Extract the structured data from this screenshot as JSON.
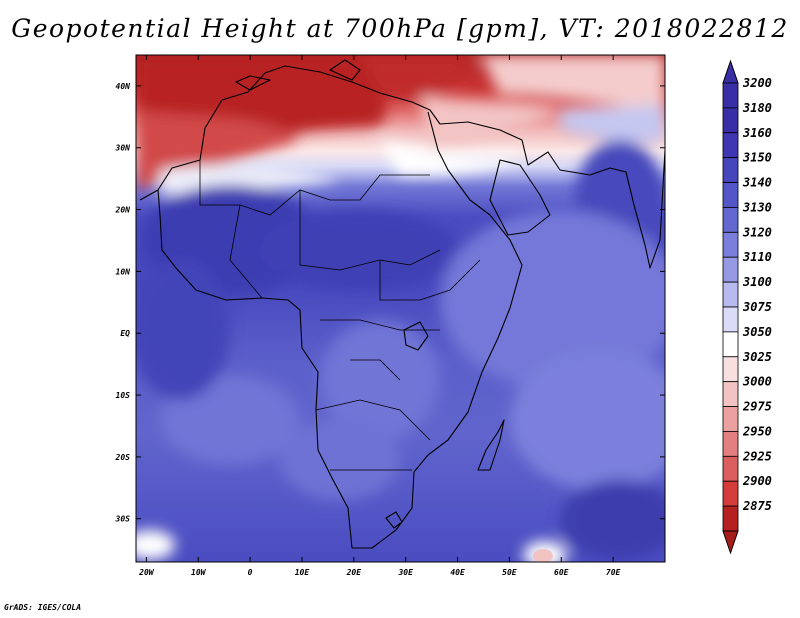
{
  "title": "Geopotential Height at 700hPa [gpm], VT: 2018022812",
  "credit": "GrADS: IGES/COLA",
  "colors": {
    "coastline": "#000000",
    "frame": "#000000"
  },
  "map": {
    "projection": "latlon",
    "lon_range": [
      -22,
      80
    ],
    "lat_range": [
      -37,
      45
    ],
    "lon_ticks": [
      {
        "lon": -20,
        "label": "20W"
      },
      {
        "lon": -10,
        "label": "10W"
      },
      {
        "lon": 0,
        "label": "0"
      },
      {
        "lon": 10,
        "label": "10E"
      },
      {
        "lon": 20,
        "label": "20E"
      },
      {
        "lon": 30,
        "label": "30E"
      },
      {
        "lon": 40,
        "label": "40E"
      },
      {
        "lon": 50,
        "label": "50E"
      },
      {
        "lon": 60,
        "label": "60E"
      },
      {
        "lon": 70,
        "label": "70E"
      }
    ],
    "lat_ticks": [
      {
        "lat": 40,
        "label": "40N"
      },
      {
        "lat": 30,
        "label": "30N"
      },
      {
        "lat": 20,
        "label": "20N"
      },
      {
        "lat": 10,
        "label": "10N"
      },
      {
        "lat": 0,
        "label": "EQ"
      },
      {
        "lat": -10,
        "label": "10S"
      },
      {
        "lat": -20,
        "label": "20S"
      },
      {
        "lat": -30,
        "label": "30S"
      }
    ]
  },
  "colorbar": {
    "levels": [
      {
        "label": "3200",
        "color": "#3a2ea6"
      },
      {
        "label": "3180",
        "color": "#3a2ea6"
      },
      {
        "label": "3160",
        "color": "#3f36b2"
      },
      {
        "label": "3150",
        "color": "#4645bc"
      },
      {
        "label": "3140",
        "color": "#5356c6"
      },
      {
        "label": "3130",
        "color": "#6268d0"
      },
      {
        "label": "3120",
        "color": "#7a7fdb"
      },
      {
        "label": "3110",
        "color": "#9599e4"
      },
      {
        "label": "3100",
        "color": "#b7baee"
      },
      {
        "label": "3075",
        "color": "#d9dbf7"
      },
      {
        "label": "3050",
        "color": "#ffffff"
      },
      {
        "label": "3025",
        "color": "#f9e0e0"
      },
      {
        "label": "3000",
        "color": "#f2c3c3"
      },
      {
        "label": "2975",
        "color": "#eca1a1"
      },
      {
        "label": "2950",
        "color": "#e47f7f"
      },
      {
        "label": "2925",
        "color": "#dc5f5f"
      },
      {
        "label": "2900",
        "color": "#d43c3c"
      },
      {
        "label": "2875",
        "color": "#b52020"
      }
    ],
    "top_arrow_color": "#3a2ea6",
    "bottom_arrow_color": "#a81c1c"
  }
}
